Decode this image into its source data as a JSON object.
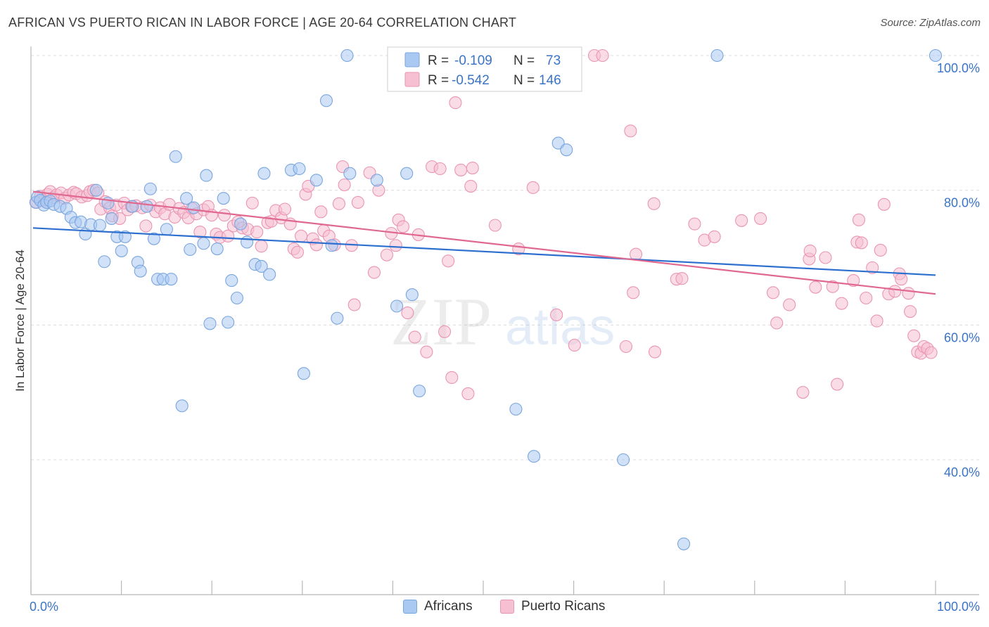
{
  "title": "AFRICAN VS PUERTO RICAN IN LABOR FORCE | AGE 20-64 CORRELATION CHART",
  "source": "Source: ZipAtlas.com",
  "colors": {
    "blue_fill": "#a9c8f2",
    "blue_stroke": "#7aa6de",
    "blue_line": "#2d6fcf",
    "pink_fill": "#f6bfd2",
    "pink_stroke": "#ea95b3",
    "pink_line": "#e0688f",
    "axis_text": "#3a74c7",
    "grid": "#dcdcdc"
  },
  "chart_data": {
    "type": "scatter",
    "title": "AFRICAN VS PUERTO RICAN IN LABOR FORCE | AGE 20-64 CORRELATION CHART",
    "xlabel": "",
    "ylabel": "In Labor Force | Age 20-64",
    "xlim": [
      0,
      100
    ],
    "ylim": [
      22,
      102
    ],
    "x_tick_labels": [
      "0.0%",
      "100.0%"
    ],
    "y_ticks": [
      40,
      60,
      80,
      100
    ],
    "y_tick_labels": [
      "40.0%",
      "60.0%",
      "80.0%",
      "100.0%"
    ],
    "watermark": {
      "zip": "ZIP",
      "atlas": "atlas"
    },
    "legend_stats": [
      {
        "series": "Africans",
        "r_label": "R =",
        "r_value": "-0.109",
        "n_label": "N =",
        "n_value": "73"
      },
      {
        "series": "Puerto Ricans",
        "r_label": "R =",
        "r_value": "-0.542",
        "n_label": "N =",
        "n_value": "146"
      }
    ],
    "series": [
      {
        "name": "Africans",
        "trend": {
          "x": [
            0,
            100
          ],
          "y": [
            74.4,
            67.4
          ]
        },
        "points": [
          [
            0.3,
            78.2
          ],
          [
            0.5,
            79.0
          ],
          [
            0.8,
            78.5
          ],
          [
            1.2,
            77.8
          ],
          [
            1.5,
            78.2
          ],
          [
            1.9,
            78.4
          ],
          [
            2.3,
            77.9
          ],
          [
            3.0,
            77.6
          ],
          [
            3.7,
            77.3
          ],
          [
            4.2,
            76.0
          ],
          [
            4.7,
            75.2
          ],
          [
            5.3,
            75.3
          ],
          [
            5.8,
            73.5
          ],
          [
            6.4,
            74.9
          ],
          [
            7.0,
            80.0
          ],
          [
            7.4,
            74.8
          ],
          [
            7.9,
            69.4
          ],
          [
            8.3,
            78.1
          ],
          [
            8.7,
            75.8
          ],
          [
            9.3,
            73.1
          ],
          [
            9.8,
            71.0
          ],
          [
            10.2,
            73.1
          ],
          [
            11.0,
            77.6
          ],
          [
            11.6,
            69.3
          ],
          [
            11.9,
            68.0
          ],
          [
            12.6,
            77.6
          ],
          [
            13.0,
            80.2
          ],
          [
            13.4,
            72.8
          ],
          [
            13.8,
            66.8
          ],
          [
            14.4,
            66.8
          ],
          [
            14.8,
            74.2
          ],
          [
            15.3,
            66.8
          ],
          [
            15.8,
            85.0
          ],
          [
            16.5,
            48.0
          ],
          [
            17.0,
            78.8
          ],
          [
            17.4,
            71.2
          ],
          [
            17.8,
            77.4
          ],
          [
            18.9,
            72.1
          ],
          [
            19.2,
            82.2
          ],
          [
            19.6,
            60.2
          ],
          [
            20.4,
            71.3
          ],
          [
            21.1,
            78.8
          ],
          [
            21.6,
            60.4
          ],
          [
            22.0,
            66.6
          ],
          [
            22.6,
            64.0
          ],
          [
            23.0,
            75.0
          ],
          [
            23.7,
            72.3
          ],
          [
            24.6,
            69.0
          ],
          [
            25.3,
            68.7
          ],
          [
            25.6,
            82.5
          ],
          [
            26.2,
            67.5
          ],
          [
            28.6,
            83.0
          ],
          [
            29.5,
            83.2
          ],
          [
            30.0,
            52.8
          ],
          [
            31.4,
            81.5
          ],
          [
            32.5,
            93.3
          ],
          [
            33.1,
            71.8
          ],
          [
            33.7,
            61.0
          ],
          [
            34.8,
            100.0
          ],
          [
            35.1,
            82.5
          ],
          [
            38.1,
            81.5
          ],
          [
            40.3,
            62.8
          ],
          [
            41.4,
            82.5
          ],
          [
            42.0,
            64.5
          ],
          [
            42.8,
            50.2
          ],
          [
            53.5,
            47.5
          ],
          [
            55.5,
            40.5
          ],
          [
            58.2,
            87.0
          ],
          [
            59.1,
            86.0
          ],
          [
            65.4,
            40.0
          ],
          [
            72.1,
            27.5
          ],
          [
            75.8,
            100.0
          ],
          [
            100.0,
            100.0
          ]
        ]
      },
      {
        "name": "Puerto Ricans",
        "trend": {
          "x": [
            0,
            100
          ],
          "y": [
            79.8,
            64.6
          ]
        },
        "points": [
          [
            0.4,
            78.2
          ],
          [
            0.8,
            79.1
          ],
          [
            1.2,
            78.5
          ],
          [
            1.6,
            79.4
          ],
          [
            1.9,
            79.8
          ],
          [
            2.3,
            78.9
          ],
          [
            2.6,
            79.3
          ],
          [
            3.1,
            79.6
          ],
          [
            3.5,
            78.8
          ],
          [
            4.0,
            79.3
          ],
          [
            4.5,
            79.7
          ],
          [
            4.8,
            79.5
          ],
          [
            5.4,
            79.0
          ],
          [
            6.0,
            79.2
          ],
          [
            6.3,
            79.8
          ],
          [
            6.7,
            80.0
          ],
          [
            7.2,
            79.6
          ],
          [
            7.5,
            77.2
          ],
          [
            8.0,
            78.3
          ],
          [
            8.5,
            77.4
          ],
          [
            8.8,
            76.2
          ],
          [
            9.2,
            77.8
          ],
          [
            9.6,
            75.8
          ],
          [
            10.1,
            78.1
          ],
          [
            10.5,
            77.1
          ],
          [
            10.9,
            77.6
          ],
          [
            11.4,
            77.7
          ],
          [
            12.1,
            77.4
          ],
          [
            12.5,
            74.7
          ],
          [
            13.0,
            77.8
          ],
          [
            13.6,
            76.8
          ],
          [
            14.1,
            77.4
          ],
          [
            14.6,
            76.5
          ],
          [
            15.1,
            77.9
          ],
          [
            15.7,
            76.0
          ],
          [
            16.2,
            77.3
          ],
          [
            16.7,
            76.7
          ],
          [
            17.2,
            75.9
          ],
          [
            17.6,
            77.3
          ],
          [
            18.1,
            76.5
          ],
          [
            18.5,
            73.8
          ],
          [
            18.9,
            77.1
          ],
          [
            19.4,
            77.6
          ],
          [
            19.8,
            76.3
          ],
          [
            20.3,
            73.5
          ],
          [
            20.7,
            73.0
          ],
          [
            21.2,
            76.3
          ],
          [
            21.6,
            73.2
          ],
          [
            22.2,
            74.7
          ],
          [
            22.7,
            75.3
          ],
          [
            23.2,
            74.4
          ],
          [
            23.8,
            74.2
          ],
          [
            24.3,
            78.1
          ],
          [
            24.8,
            73.8
          ],
          [
            25.3,
            71.7
          ],
          [
            26.0,
            75.2
          ],
          [
            26.4,
            75.4
          ],
          [
            26.9,
            77.0
          ],
          [
            27.5,
            75.9
          ],
          [
            27.9,
            77.2
          ],
          [
            28.5,
            75.0
          ],
          [
            28.9,
            71.3
          ],
          [
            29.3,
            70.8
          ],
          [
            29.7,
            73.2
          ],
          [
            30.2,
            79.4
          ],
          [
            30.5,
            80.6
          ],
          [
            31.0,
            72.8
          ],
          [
            31.4,
            71.9
          ],
          [
            31.9,
            76.8
          ],
          [
            32.2,
            74.0
          ],
          [
            32.8,
            73.2
          ],
          [
            33.4,
            71.9
          ],
          [
            33.9,
            78.0
          ],
          [
            34.3,
            83.5
          ],
          [
            34.5,
            80.8
          ],
          [
            35.3,
            71.8
          ],
          [
            35.6,
            63.0
          ],
          [
            36.0,
            78.2
          ],
          [
            37.3,
            82.6
          ],
          [
            37.8,
            67.8
          ],
          [
            38.3,
            80.0
          ],
          [
            39.2,
            70.4
          ],
          [
            39.7,
            73.6
          ],
          [
            40.2,
            71.8
          ],
          [
            40.5,
            75.6
          ],
          [
            41.0,
            74.6
          ],
          [
            41.5,
            61.8
          ],
          [
            42.3,
            58.2
          ],
          [
            42.7,
            73.4
          ],
          [
            43.6,
            56.0
          ],
          [
            44.2,
            83.5
          ],
          [
            45.1,
            83.2
          ],
          [
            45.6,
            59.0
          ],
          [
            46.0,
            69.5
          ],
          [
            46.4,
            52.2
          ],
          [
            46.8,
            93.0
          ],
          [
            47.4,
            83.0
          ],
          [
            48.2,
            49.8
          ],
          [
            48.7,
            83.3
          ],
          [
            48.5,
            80.6
          ],
          [
            51.2,
            74.8
          ],
          [
            53.8,
            71.3
          ],
          [
            55.4,
            80.4
          ],
          [
            58.0,
            61.5
          ],
          [
            60.0,
            57.0
          ],
          [
            62.2,
            100.0
          ],
          [
            63.1,
            100.0
          ],
          [
            65.7,
            56.8
          ],
          [
            66.2,
            88.8
          ],
          [
            66.5,
            64.8
          ],
          [
            66.8,
            70.5
          ],
          [
            68.9,
            56.0
          ],
          [
            68.8,
            78.0
          ],
          [
            71.3,
            66.8
          ],
          [
            71.9,
            66.9
          ],
          [
            73.3,
            75.0
          ],
          [
            74.4,
            72.6
          ],
          [
            75.5,
            73.1
          ],
          [
            78.5,
            75.5
          ],
          [
            80.6,
            75.8
          ],
          [
            82.0,
            64.8
          ],
          [
            82.4,
            60.3
          ],
          [
            83.8,
            63.0
          ],
          [
            85.3,
            50.0
          ],
          [
            86.0,
            69.8
          ],
          [
            86.1,
            71.0
          ],
          [
            86.7,
            65.6
          ],
          [
            87.8,
            70.0
          ],
          [
            88.6,
            65.7
          ],
          [
            89.1,
            51.2
          ],
          [
            89.6,
            63.2
          ],
          [
            90.9,
            66.6
          ],
          [
            91.3,
            72.3
          ],
          [
            91.5,
            75.6
          ],
          [
            91.8,
            72.2
          ],
          [
            92.3,
            64.0
          ],
          [
            93.0,
            68.5
          ],
          [
            93.5,
            60.6
          ],
          [
            93.9,
            71.1
          ],
          [
            94.3,
            77.9
          ],
          [
            94.8,
            64.6
          ],
          [
            95.5,
            65.0
          ],
          [
            96.0,
            67.6
          ],
          [
            96.2,
            66.8
          ],
          [
            97.0,
            64.7
          ],
          [
            97.2,
            62.0
          ],
          [
            97.6,
            58.4
          ],
          [
            98.0,
            56.0
          ],
          [
            98.4,
            55.8
          ],
          [
            98.7,
            56.8
          ],
          [
            99.1,
            56.5
          ],
          [
            99.5,
            55.9
          ]
        ]
      }
    ]
  }
}
